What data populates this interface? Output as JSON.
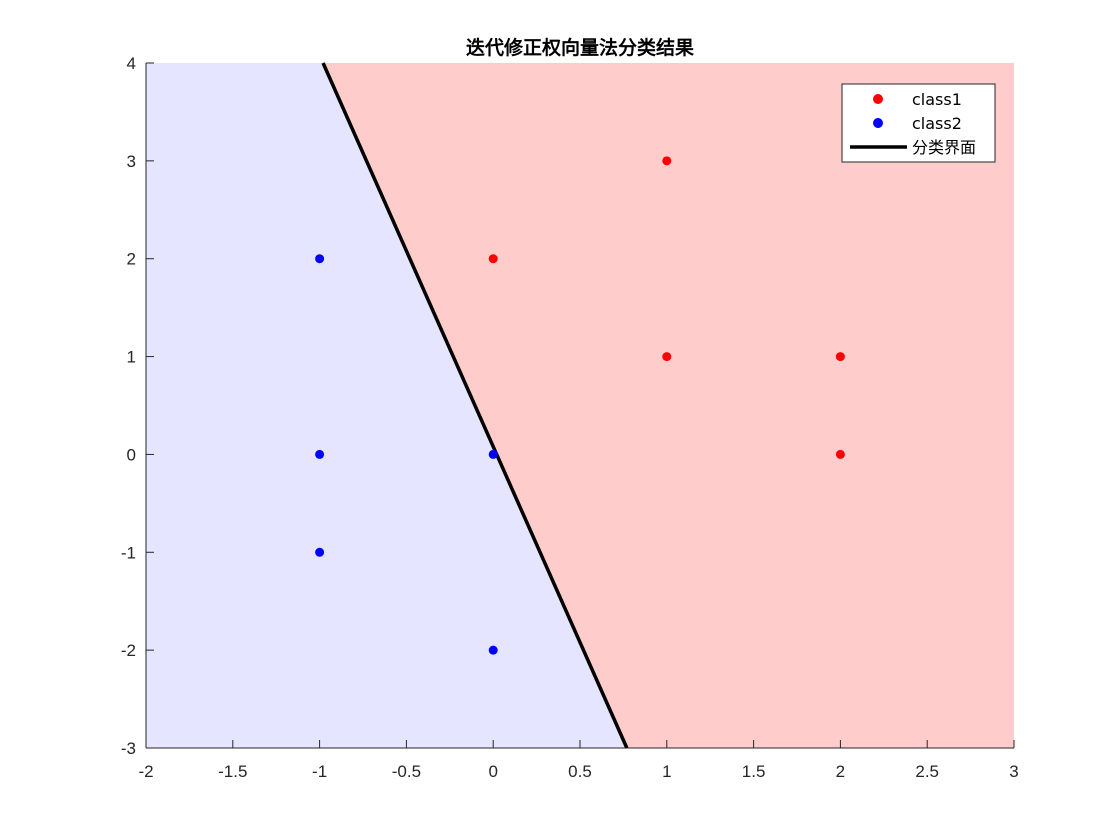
{
  "chart_data": {
    "type": "scatter",
    "title": "迭代修正权向量法分类结果",
    "xlabel": "",
    "ylabel": "",
    "xlim": [
      -2,
      3
    ],
    "ylim": [
      -3,
      4
    ],
    "x_ticks": [
      -2,
      -1.5,
      -1,
      -0.5,
      0,
      0.5,
      1,
      1.5,
      2,
      2.5,
      3
    ],
    "y_ticks": [
      -3,
      -2,
      -1,
      0,
      1,
      2,
      3,
      4
    ],
    "x_tick_labels": [
      "-2",
      "-1.5",
      "-1",
      "-0.5",
      "0",
      "0.5",
      "1",
      "1.5",
      "2",
      "2.5",
      "3"
    ],
    "y_tick_labels": [
      "-3",
      "-2",
      "-1",
      "0",
      "1",
      "2",
      "3",
      "4"
    ],
    "grid": false,
    "legend_position": "top-right",
    "series": [
      {
        "name": "class1",
        "kind": "scatter",
        "color": "#ff0000",
        "points": [
          [
            1,
            3
          ],
          [
            0,
            2
          ],
          [
            1,
            1
          ],
          [
            2,
            1
          ],
          [
            2,
            0
          ]
        ]
      },
      {
        "name": "class2",
        "kind": "scatter",
        "color": "#0000ff",
        "points": [
          [
            -1,
            2
          ],
          [
            -1,
            0
          ],
          [
            0,
            0
          ],
          [
            -1,
            -1
          ],
          [
            0,
            -2
          ]
        ]
      },
      {
        "name": "分类界面",
        "kind": "line",
        "color": "#000000",
        "points": [
          [
            -0.98,
            4
          ],
          [
            0.77,
            -3
          ]
        ]
      }
    ],
    "regions": [
      {
        "label": "class1 region",
        "color": "#ffcccc",
        "side": "right"
      },
      {
        "label": "class2 region",
        "color": "#e5e5ff",
        "side": "left"
      }
    ]
  }
}
